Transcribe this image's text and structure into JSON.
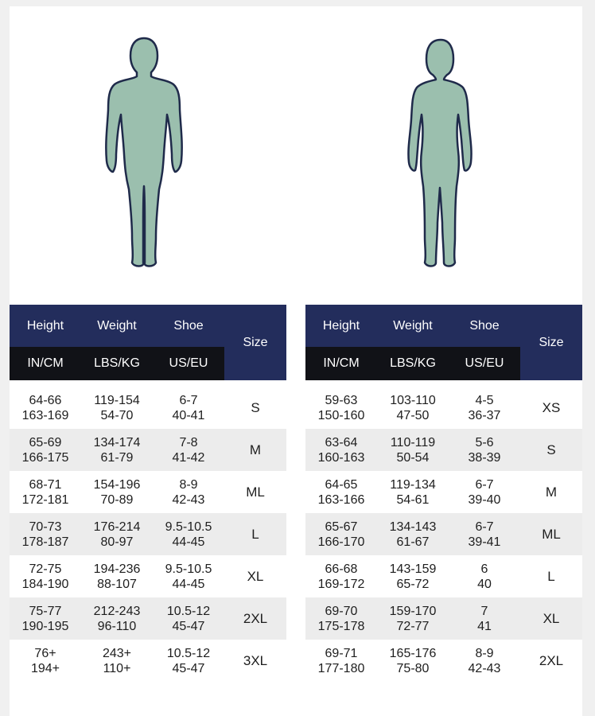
{
  "colors": {
    "header_navy": "#232d5c",
    "header_black": "#111217",
    "figure_fill": "#9bbfae",
    "figure_stroke": "#1f2a4a",
    "alt_row": "#ececec"
  },
  "figures": {
    "men_icon": "male-silhouette-icon",
    "women_icon": "female-silhouette-icon"
  },
  "tables": {
    "men": {
      "headers": {
        "height": "Height",
        "weight": "Weight",
        "shoe": "Shoe",
        "size": "Size",
        "height_unit": "IN/CM",
        "weight_unit": "LBS/KG",
        "shoe_unit": "US/EU"
      },
      "rows": [
        {
          "h1": "64-66",
          "h2": "163-169",
          "w1": "119-154",
          "w2": "54-70",
          "s1": "6-7",
          "s2": "40-41",
          "size": "S"
        },
        {
          "h1": "65-69",
          "h2": "166-175",
          "w1": "134-174",
          "w2": "61-79",
          "s1": "7-8",
          "s2": "41-42",
          "size": "M"
        },
        {
          "h1": "68-71",
          "h2": "172-181",
          "w1": "154-196",
          "w2": "70-89",
          "s1": "8-9",
          "s2": "42-43",
          "size": "ML"
        },
        {
          "h1": "70-73",
          "h2": "178-187",
          "w1": "176-214",
          "w2": "80-97",
          "s1": "9.5-10.5",
          "s2": "44-45",
          "size": "L"
        },
        {
          "h1": "72-75",
          "h2": "184-190",
          "w1": "194-236",
          "w2": "88-107",
          "s1": "9.5-10.5",
          "s2": "44-45",
          "size": "XL"
        },
        {
          "h1": "75-77",
          "h2": "190-195",
          "w1": "212-243",
          "w2": "96-110",
          "s1": "10.5-12",
          "s2": "45-47",
          "size": "2XL"
        },
        {
          "h1": "76+",
          "h2": "194+",
          "w1": "243+",
          "w2": "110+",
          "s1": "10.5-12",
          "s2": "45-47",
          "size": "3XL"
        }
      ]
    },
    "women": {
      "headers": {
        "height": "Height",
        "weight": "Weight",
        "shoe": "Shoe",
        "size": "Size",
        "height_unit": "IN/CM",
        "weight_unit": "LBS/KG",
        "shoe_unit": "US/EU"
      },
      "rows": [
        {
          "h1": "59-63",
          "h2": "150-160",
          "w1": "103-110",
          "w2": "47-50",
          "s1": "4-5",
          "s2": "36-37",
          "size": "XS"
        },
        {
          "h1": "63-64",
          "h2": "160-163",
          "w1": "110-119",
          "w2": "50-54",
          "s1": "5-6",
          "s2": "38-39",
          "size": "S"
        },
        {
          "h1": "64-65",
          "h2": "163-166",
          "w1": "119-134",
          "w2": "54-61",
          "s1": "6-7",
          "s2": "39-40",
          "size": "M"
        },
        {
          "h1": "65-67",
          "h2": "166-170",
          "w1": "134-143",
          "w2": "61-67",
          "s1": "6-7",
          "s2": "39-41",
          "size": "ML"
        },
        {
          "h1": "66-68",
          "h2": "169-172",
          "w1": "143-159",
          "w2": "65-72",
          "s1": "6",
          "s2": "40",
          "size": "L"
        },
        {
          "h1": "69-70",
          "h2": "175-178",
          "w1": "159-170",
          "w2": "72-77",
          "s1": "7",
          "s2": "41",
          "size": "XL"
        },
        {
          "h1": "69-71",
          "h2": "177-180",
          "w1": "165-176",
          "w2": "75-80",
          "s1": "8-9",
          "s2": "42-43",
          "size": "2XL"
        }
      ]
    }
  }
}
